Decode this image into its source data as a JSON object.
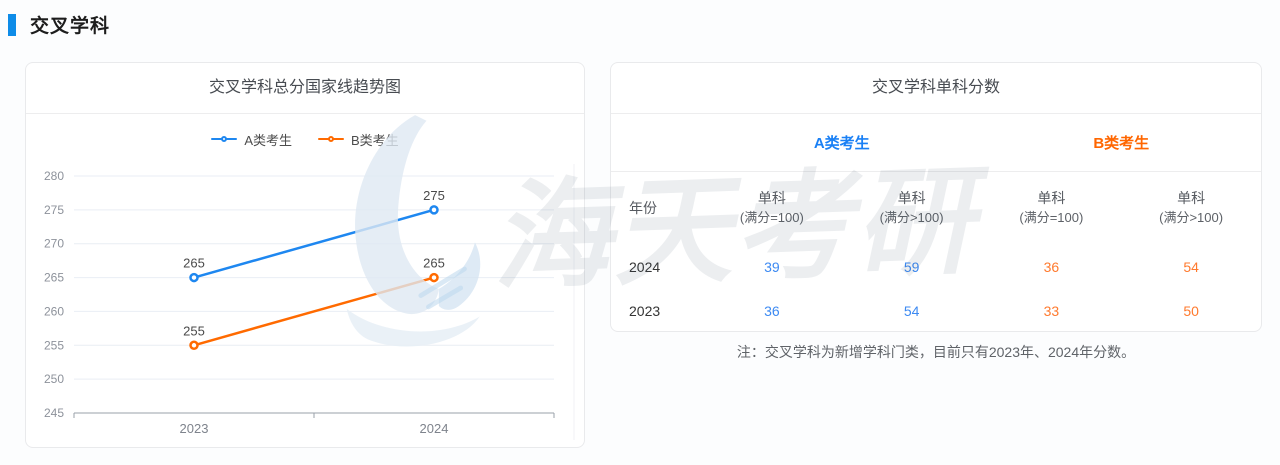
{
  "section": {
    "title": "交叉学科"
  },
  "colors": {
    "accent": "#0e8ce8",
    "series_a": "#1e87f0",
    "series_b": "#ff6a00",
    "grid_line": "#e9eef4",
    "axis_line": "#9aa0a8"
  },
  "trend_panel": {
    "title": "交叉学科总分国家线趋势图"
  },
  "chart_data": {
    "type": "line",
    "title": "交叉学科总分国家线趋势图",
    "categories": [
      "2023",
      "2024"
    ],
    "series": [
      {
        "name": "A类考生",
        "color": "#1e87f0",
        "values": [
          265,
          275
        ]
      },
      {
        "name": "B类考生",
        "color": "#ff6a00",
        "values": [
          255,
          265
        ]
      }
    ],
    "ylim": [
      245,
      280
    ],
    "yticks": [
      245,
      250,
      255,
      260,
      265,
      270,
      275,
      280
    ],
    "grid": true,
    "legend_position": "top",
    "data_labels": true
  },
  "score_panel": {
    "title": "交叉学科单科分数",
    "group_headers": [
      {
        "label": "A类考生"
      },
      {
        "label": "B类考生"
      }
    ],
    "columns": [
      {
        "line1": "年份",
        "line2": ""
      },
      {
        "line1": "单科",
        "line2": "(满分=100)"
      },
      {
        "line1": "单科",
        "line2": "(满分>100)"
      },
      {
        "line1": "单科",
        "line2": "(满分=100)"
      },
      {
        "line1": "单科",
        "line2": "(满分>100)"
      }
    ],
    "rows": [
      {
        "year": "2024",
        "a_100": "39",
        "a_gt100": "59",
        "b_100": "36",
        "b_gt100": "54"
      },
      {
        "year": "2023",
        "a_100": "36",
        "a_gt100": "54",
        "b_100": "33",
        "b_gt100": "50"
      }
    ]
  },
  "note": "注：交叉学科为新增学科门类，目前只有2023年、2024年分数。",
  "watermark": {
    "text": "海天考研"
  }
}
